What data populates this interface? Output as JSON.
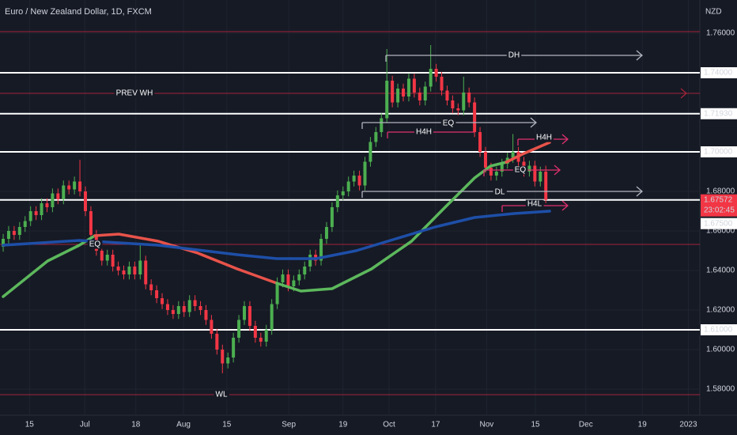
{
  "chart_data": {
    "type": "candlestick",
    "title": "Euro / New Zealand Dollar, 1D, FXCM",
    "currency": "NZD",
    "up_color": "#4caf50",
    "down_color": "#f23645",
    "grid": true,
    "xlim": [
      -0.58,
      127.1
    ],
    "ylim": [
      1.5668,
      1.7768
    ],
    "xticks": [
      {
        "value": 4.8,
        "label": "15"
      },
      {
        "value": 14.9,
        "label": "Jul"
      },
      {
        "value": 24.2,
        "label": "18"
      },
      {
        "value": 32.9,
        "label": "Aug"
      },
      {
        "value": 40.8,
        "label": "15"
      },
      {
        "value": 52.1,
        "label": "Sep"
      },
      {
        "value": 62.0,
        "label": "19"
      },
      {
        "value": 70.4,
        "label": "Oct"
      },
      {
        "value": 78.9,
        "label": "17"
      },
      {
        "value": 88.2,
        "label": "Nov"
      },
      {
        "value": 97.1,
        "label": "15"
      },
      {
        "value": 106.3,
        "label": "Dec"
      },
      {
        "value": 116.6,
        "label": "19"
      },
      {
        "value": 125.0,
        "label": "2023"
      }
    ],
    "yticks": [
      {
        "value": 1.76,
        "label": "1.76000"
      },
      {
        "value": 1.68,
        "label": "1.68000"
      },
      {
        "value": 1.66,
        "label": "1.66000"
      },
      {
        "value": 1.64,
        "label": "1.64000"
      },
      {
        "value": 1.62,
        "label": "1.62000"
      },
      {
        "value": 1.6,
        "label": "1.60000"
      },
      {
        "value": 1.58,
        "label": "1.58000"
      }
    ],
    "ohlc": [
      [
        1.652,
        1.6585,
        1.6495,
        1.656
      ],
      [
        1.656,
        1.6625,
        1.6535,
        1.66
      ],
      [
        1.66,
        1.6625,
        1.6555,
        1.658
      ],
      [
        1.658,
        1.6645,
        1.6555,
        1.662
      ],
      [
        1.662,
        1.6675,
        1.6595,
        1.665
      ],
      [
        1.665,
        1.6725,
        1.6625,
        1.67
      ],
      [
        1.67,
        1.6725,
        1.6655,
        1.668
      ],
      [
        1.668,
        1.6765,
        1.6655,
        1.674
      ],
      [
        1.674,
        1.6765,
        1.6695,
        1.672
      ],
      [
        1.672,
        1.6815,
        1.6695,
        1.679
      ],
      [
        1.679,
        1.6815,
        1.6735,
        1.676
      ],
      [
        1.676,
        1.6855,
        1.6735,
        1.683
      ],
      [
        1.683,
        1.6855,
        1.6785,
        1.681
      ],
      [
        1.681,
        1.6875,
        1.6785,
        1.685
      ],
      [
        1.685,
        1.696,
        1.6775,
        1.68
      ],
      [
        1.68,
        1.6825,
        1.6675,
        1.67
      ],
      [
        1.67,
        1.6725,
        1.6555,
        1.658
      ],
      [
        1.658,
        1.6605,
        1.6475,
        1.65
      ],
      [
        1.65,
        1.6525,
        1.6425,
        1.645
      ],
      [
        1.645,
        1.6505,
        1.6425,
        1.648
      ],
      [
        1.648,
        1.6505,
        1.6395,
        1.642
      ],
      [
        1.642,
        1.6445,
        1.6375,
        1.64
      ],
      [
        1.64,
        1.6425,
        1.6355,
        1.638
      ],
      [
        1.638,
        1.6445,
        1.6355,
        1.642
      ],
      [
        1.642,
        1.6445,
        1.6355,
        1.638
      ],
      [
        1.638,
        1.653,
        1.6355,
        1.645
      ],
      [
        1.645,
        1.6475,
        1.6305,
        1.633
      ],
      [
        1.633,
        1.6355,
        1.6275,
        1.63
      ],
      [
        1.63,
        1.6325,
        1.6235,
        1.626
      ],
      [
        1.626,
        1.6285,
        1.6205,
        1.623
      ],
      [
        1.623,
        1.6255,
        1.6175,
        1.62
      ],
      [
        1.62,
        1.6225,
        1.6155,
        1.618
      ],
      [
        1.618,
        1.6245,
        1.6155,
        1.622
      ],
      [
        1.622,
        1.6245,
        1.6165,
        1.619
      ],
      [
        1.619,
        1.6275,
        1.6165,
        1.625
      ],
      [
        1.625,
        1.6275,
        1.6195,
        1.622
      ],
      [
        1.622,
        1.6245,
        1.6175,
        1.62
      ],
      [
        1.62,
        1.6225,
        1.6125,
        1.615
      ],
      [
        1.615,
        1.6175,
        1.6055,
        1.608
      ],
      [
        1.608,
        1.6105,
        1.5975,
        1.6
      ],
      [
        1.6,
        1.6025,
        1.588,
        1.593
      ],
      [
        1.593,
        1.5985,
        1.5905,
        1.596
      ],
      [
        1.596,
        1.6085,
        1.5935,
        1.606
      ],
      [
        1.606,
        1.6175,
        1.6035,
        1.615
      ],
      [
        1.615,
        1.6245,
        1.6125,
        1.622
      ],
      [
        1.622,
        1.6245,
        1.6095,
        1.612
      ],
      [
        1.612,
        1.6145,
        1.6035,
        1.606
      ],
      [
        1.606,
        1.6085,
        1.6015,
        1.604
      ],
      [
        1.604,
        1.6125,
        1.6015,
        1.61
      ],
      [
        1.61,
        1.6255,
        1.6075,
        1.623
      ],
      [
        1.623,
        1.6365,
        1.6205,
        1.634
      ],
      [
        1.634,
        1.6405,
        1.6315,
        1.638
      ],
      [
        1.638,
        1.6405,
        1.6295,
        1.632
      ],
      [
        1.632,
        1.6375,
        1.6295,
        1.635
      ],
      [
        1.635,
        1.6405,
        1.6325,
        1.638
      ],
      [
        1.638,
        1.6445,
        1.6355,
        1.642
      ],
      [
        1.642,
        1.6505,
        1.6395,
        1.648
      ],
      [
        1.648,
        1.6505,
        1.6425,
        1.645
      ],
      [
        1.645,
        1.6585,
        1.6425,
        1.656
      ],
      [
        1.656,
        1.6645,
        1.6535,
        1.662
      ],
      [
        1.662,
        1.6745,
        1.6595,
        1.672
      ],
      [
        1.672,
        1.6805,
        1.6695,
        1.678
      ],
      [
        1.678,
        1.6825,
        1.6755,
        1.68
      ],
      [
        1.68,
        1.6875,
        1.6775,
        1.685
      ],
      [
        1.685,
        1.6905,
        1.6825,
        1.688
      ],
      [
        1.688,
        1.6905,
        1.6805,
        1.683
      ],
      [
        1.683,
        1.6975,
        1.6805,
        1.695
      ],
      [
        1.695,
        1.7075,
        1.6925,
        1.705
      ],
      [
        1.705,
        1.7125,
        1.7025,
        1.71
      ],
      [
        1.71,
        1.7195,
        1.7075,
        1.717
      ],
      [
        1.717,
        1.752,
        1.7145,
        1.736
      ],
      [
        1.736,
        1.7385,
        1.7225,
        1.725
      ],
      [
        1.725,
        1.7345,
        1.7225,
        1.732
      ],
      [
        1.732,
        1.7345,
        1.7255,
        1.728
      ],
      [
        1.728,
        1.7395,
        1.7255,
        1.737
      ],
      [
        1.737,
        1.7395,
        1.7275,
        1.73
      ],
      [
        1.73,
        1.7325,
        1.7235,
        1.726
      ],
      [
        1.726,
        1.7355,
        1.7235,
        1.733
      ],
      [
        1.733,
        1.754,
        1.7305,
        1.742
      ],
      [
        1.742,
        1.7445,
        1.7355,
        1.738
      ],
      [
        1.738,
        1.7405,
        1.7285,
        1.731
      ],
      [
        1.731,
        1.7335,
        1.7235,
        1.726
      ],
      [
        1.726,
        1.7285,
        1.7195,
        1.722
      ],
      [
        1.722,
        1.7245,
        1.7185,
        1.721
      ],
      [
        1.721,
        1.738,
        1.7185,
        1.73
      ],
      [
        1.73,
        1.7325,
        1.7225,
        1.725
      ],
      [
        1.725,
        1.7275,
        1.7075,
        1.71
      ],
      [
        1.71,
        1.7125,
        1.6975,
        1.7
      ],
      [
        1.7,
        1.7025,
        1.6895,
        1.692
      ],
      [
        1.692,
        1.6945,
        1.6855,
        1.688
      ],
      [
        1.688,
        1.6925,
        1.6855,
        1.69
      ],
      [
        1.69,
        1.6965,
        1.6875,
        1.694
      ],
      [
        1.694,
        1.6995,
        1.6915,
        1.697
      ],
      [
        1.697,
        1.709,
        1.6945,
        1.7
      ],
      [
        1.7,
        1.7025,
        1.6925,
        1.695
      ],
      [
        1.695,
        1.6975,
        1.6875,
        1.69
      ],
      [
        1.69,
        1.6955,
        1.6875,
        1.693
      ],
      [
        1.693,
        1.6955,
        1.6825,
        1.685
      ],
      [
        1.685,
        1.6925,
        1.6825,
        1.69
      ],
      [
        1.69,
        1.693,
        1.674,
        1.67572
      ]
    ],
    "lines": [
      {
        "color": "#5cb85c",
        "x": [
          0,
          8.1,
          13.9,
          16.7
        ],
        "values": [
          1.6268,
          1.6448,
          1.6528,
          1.6576
        ]
      },
      {
        "color": "#e8534a",
        "x": [
          16.7,
          21.1,
          28.3,
          35.5,
          42.7,
          49.9
        ],
        "values": [
          1.6576,
          1.6584,
          1.6548,
          1.6488,
          1.6408,
          1.6336
        ]
      },
      {
        "color": "#5cb85c",
        "x": [
          49.9,
          54.3,
          60.0,
          67.2,
          74.5,
          80.2,
          86.0,
          88.9,
          91.8
        ],
        "values": [
          1.6336,
          1.6296,
          1.6308,
          1.6408,
          1.6548,
          1.6708,
          1.6868,
          1.6928,
          1.6948
        ]
      },
      {
        "color": "#e8534a",
        "x": [
          91.8,
          94.7,
          99.7
        ],
        "values": [
          1.6948,
          1.6988,
          1.7048
        ]
      },
      {
        "color": "#1e4fa8",
        "x": [
          0,
          13.9,
          28.3,
          42.7,
          49.9,
          57.1,
          64.4,
          71.6,
          78.8,
          86.0,
          93.2,
          99.7
        ],
        "values": [
          1.6528,
          1.6552,
          1.6528,
          1.648,
          1.646,
          1.646,
          1.65,
          1.656,
          1.662,
          1.6668,
          1.6688,
          1.67
        ]
      }
    ],
    "levels": [
      {
        "value": 1.7608,
        "color": "#a3243a"
      },
      {
        "value": 1.74,
        "color": "#ffffff",
        "label": "1.74000"
      },
      {
        "value": 1.7296,
        "color": "#a3243a"
      },
      {
        "value": 1.7193,
        "color": "#ffffff",
        "label": "1.71930"
      },
      {
        "value": 1.7,
        "color": "#ffffff",
        "label": "1.70000"
      },
      {
        "value": 1.67572,
        "color": "#ffffff",
        "tag_color": "#f23645"
      },
      {
        "value": 1.6532,
        "color": "#a3243a"
      },
      {
        "value": 1.61,
        "color": "#ffffff",
        "label": "1.61000"
      },
      {
        "value": 1.5772,
        "color": "#a3243a"
      }
    ],
    "countdown": "23:02:45",
    "price_tags": [
      {
        "value": 1.675,
        "label": "1.67500"
      }
    ],
    "annotations": [
      "DH",
      "PREV WH",
      "H4H",
      "EQ",
      "H4H",
      "EQ",
      "DL",
      "H4L",
      "EQ",
      "WL"
    ]
  }
}
